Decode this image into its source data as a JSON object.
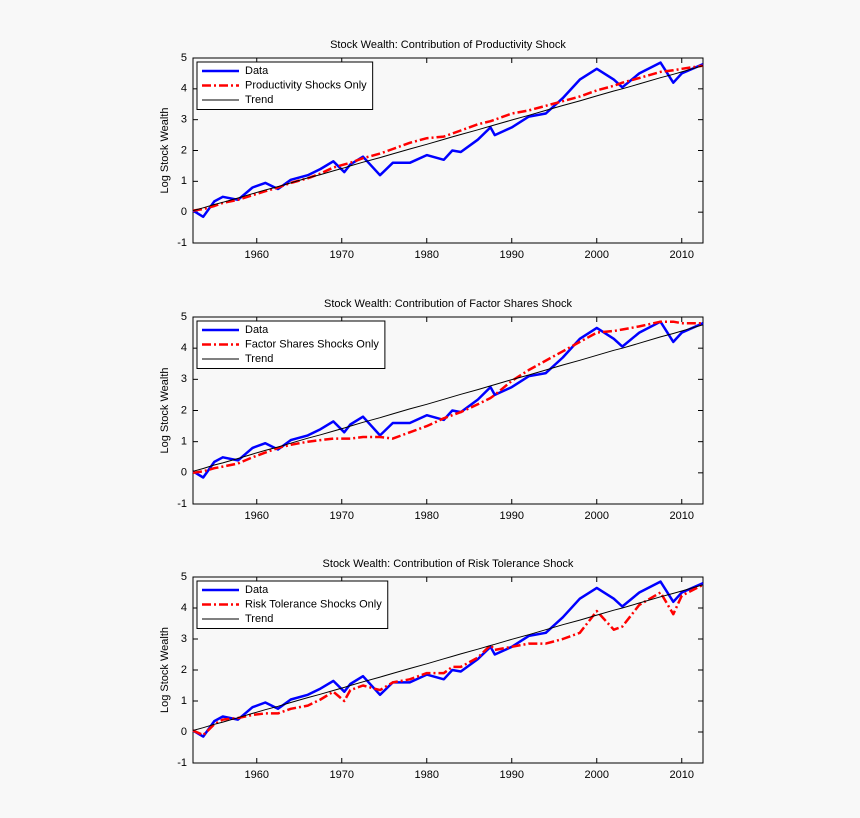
{
  "chart_data": [
    {
      "type": "line",
      "title": "Stock Wealth: Contribution of Productivity Shock",
      "ylabel": "Log Stock Wealth",
      "x": [
        1952.5,
        1953.7,
        1955,
        1956,
        1957.8,
        1959.5,
        1961,
        1962.5,
        1964,
        1966,
        1967.5,
        1969,
        1970.3,
        1971,
        1972.5,
        1974.5,
        1976,
        1978,
        1980,
        1982,
        1983,
        1984,
        1986,
        1987.5,
        1988,
        1990,
        1992,
        1994,
        1996,
        1998,
        2000,
        2002,
        2003,
        2005,
        2007.5,
        2009,
        2010,
        2012.5
      ],
      "series": [
        {
          "name": "Data",
          "color": "#0000ff",
          "linestyle": "solid",
          "linewidth": 2.5,
          "values": [
            0.05,
            -0.15,
            0.35,
            0.5,
            0.4,
            0.8,
            0.95,
            0.75,
            1.05,
            1.2,
            1.4,
            1.65,
            1.3,
            1.55,
            1.8,
            1.2,
            1.6,
            1.6,
            1.85,
            1.7,
            2.0,
            1.95,
            2.35,
            2.75,
            2.5,
            2.75,
            3.1,
            3.2,
            3.7,
            4.3,
            4.65,
            4.3,
            4.05,
            4.5,
            4.85,
            4.2,
            4.5,
            4.8
          ]
        },
        {
          "name": "Productivity Shocks Only",
          "color": "#ff0000",
          "linestyle": "dashdot",
          "linewidth": 2.5,
          "values": [
            0.05,
            0.1,
            0.2,
            0.3,
            0.4,
            0.55,
            0.68,
            0.8,
            0.95,
            1.1,
            1.25,
            1.45,
            1.55,
            1.6,
            1.75,
            1.9,
            2.05,
            2.25,
            2.4,
            2.45,
            2.55,
            2.65,
            2.85,
            2.95,
            3.0,
            3.2,
            3.3,
            3.45,
            3.6,
            3.75,
            3.95,
            4.1,
            4.2,
            4.35,
            4.55,
            4.6,
            4.65,
            4.75
          ]
        },
        {
          "name": "Trend",
          "color": "#000000",
          "linestyle": "solid",
          "linewidth": 1,
          "values": [
            0.05,
            0.14,
            0.25,
            0.32,
            0.46,
            0.6,
            0.72,
            0.83,
            0.95,
            1.11,
            1.22,
            1.34,
            1.44,
            1.5,
            1.62,
            1.77,
            1.89,
            2.05,
            2.2,
            2.36,
            2.44,
            2.52,
            2.67,
            2.79,
            2.83,
            2.99,
            3.14,
            3.3,
            3.46,
            3.61,
            3.77,
            3.93,
            4.0,
            4.16,
            4.36,
            4.47,
            4.55,
            4.75
          ]
        }
      ],
      "xlim": [
        1952.5,
        2012.5
      ],
      "xticks": [
        1960,
        1970,
        1980,
        1990,
        2000,
        2010
      ],
      "ylim": [
        -1,
        5
      ],
      "yticks": [
        -1,
        0,
        1,
        2,
        3,
        4,
        5
      ],
      "grid": false,
      "legend": "upper left"
    },
    {
      "type": "line",
      "title": "Stock Wealth: Contribution of Factor Shares Shock",
      "ylabel": "Log Stock Wealth",
      "x": [
        1952.5,
        1953.7,
        1955,
        1956,
        1957.8,
        1959.5,
        1961,
        1962.5,
        1964,
        1966,
        1967.5,
        1969,
        1970.3,
        1971,
        1972.5,
        1974.5,
        1976,
        1978,
        1980,
        1982,
        1983,
        1984,
        1986,
        1987.5,
        1988,
        1990,
        1992,
        1994,
        1996,
        1998,
        2000,
        2002,
        2003,
        2005,
        2007.5,
        2009,
        2010,
        2012.5
      ],
      "series": [
        {
          "name": "Data",
          "color": "#0000ff",
          "linestyle": "solid",
          "linewidth": 2.5,
          "values": [
            0.05,
            -0.15,
            0.35,
            0.5,
            0.4,
            0.8,
            0.95,
            0.75,
            1.05,
            1.2,
            1.4,
            1.65,
            1.3,
            1.55,
            1.8,
            1.2,
            1.6,
            1.6,
            1.85,
            1.7,
            2.0,
            1.95,
            2.35,
            2.75,
            2.5,
            2.75,
            3.1,
            3.2,
            3.7,
            4.3,
            4.65,
            4.3,
            4.05,
            4.5,
            4.85,
            4.2,
            4.5,
            4.8
          ]
        },
        {
          "name": "Factor Shares Shocks Only",
          "color": "#ff0000",
          "linestyle": "dashdot",
          "linewidth": 2.5,
          "values": [
            0.0,
            0.05,
            0.15,
            0.2,
            0.3,
            0.5,
            0.65,
            0.8,
            0.9,
            1.0,
            1.05,
            1.1,
            1.1,
            1.1,
            1.15,
            1.15,
            1.1,
            1.3,
            1.5,
            1.75,
            1.85,
            1.95,
            2.2,
            2.4,
            2.5,
            2.95,
            3.3,
            3.6,
            3.9,
            4.2,
            4.5,
            4.55,
            4.6,
            4.7,
            4.85,
            4.85,
            4.8,
            4.8
          ]
        },
        {
          "name": "Trend",
          "color": "#000000",
          "linestyle": "solid",
          "linewidth": 1,
          "values": [
            0.05,
            0.14,
            0.25,
            0.32,
            0.46,
            0.6,
            0.72,
            0.83,
            0.95,
            1.11,
            1.22,
            1.34,
            1.44,
            1.5,
            1.62,
            1.77,
            1.89,
            2.05,
            2.2,
            2.36,
            2.44,
            2.52,
            2.67,
            2.79,
            2.83,
            2.99,
            3.14,
            3.3,
            3.46,
            3.61,
            3.77,
            3.93,
            4.0,
            4.16,
            4.36,
            4.47,
            4.55,
            4.75
          ]
        }
      ],
      "xlim": [
        1952.5,
        2012.5
      ],
      "xticks": [
        1960,
        1970,
        1980,
        1990,
        2000,
        2010
      ],
      "ylim": [
        -1,
        5
      ],
      "yticks": [
        -1,
        0,
        1,
        2,
        3,
        4,
        5
      ],
      "grid": false,
      "legend": "upper left"
    },
    {
      "type": "line",
      "title": "Stock Wealth: Contribution of Risk Tolerance Shock",
      "ylabel": "Log Stock Wealth",
      "x": [
        1952.5,
        1953.7,
        1955,
        1956,
        1957.8,
        1959.5,
        1961,
        1962.5,
        1964,
        1966,
        1967.5,
        1969,
        1970.3,
        1971,
        1972.5,
        1974.5,
        1976,
        1978,
        1980,
        1982,
        1983,
        1984,
        1986,
        1987.5,
        1988,
        1990,
        1992,
        1994,
        1996,
        1998,
        2000,
        2002,
        2003,
        2005,
        2007.5,
        2009,
        2010,
        2012.5
      ],
      "series": [
        {
          "name": "Data",
          "color": "#0000ff",
          "linestyle": "solid",
          "linewidth": 2.5,
          "values": [
            0.05,
            -0.15,
            0.35,
            0.5,
            0.4,
            0.8,
            0.95,
            0.75,
            1.05,
            1.2,
            1.4,
            1.65,
            1.3,
            1.55,
            1.8,
            1.2,
            1.6,
            1.6,
            1.85,
            1.7,
            2.0,
            1.95,
            2.35,
            2.75,
            2.5,
            2.75,
            3.1,
            3.2,
            3.7,
            4.3,
            4.65,
            4.3,
            4.05,
            4.5,
            4.85,
            4.2,
            4.5,
            4.8
          ]
        },
        {
          "name": "Risk Tolerance Shocks Only",
          "color": "#ff0000",
          "linestyle": "dashdot",
          "linewidth": 2.5,
          "values": [
            0.05,
            -0.1,
            0.25,
            0.4,
            0.45,
            0.55,
            0.6,
            0.6,
            0.75,
            0.85,
            1.05,
            1.3,
            1.0,
            1.35,
            1.5,
            1.35,
            1.6,
            1.7,
            1.9,
            1.9,
            2.1,
            2.1,
            2.4,
            2.8,
            2.65,
            2.75,
            2.85,
            2.85,
            3.0,
            3.2,
            3.9,
            3.3,
            3.4,
            4.1,
            4.5,
            3.8,
            4.4,
            4.75
          ]
        },
        {
          "name": "Trend",
          "color": "#000000",
          "linestyle": "solid",
          "linewidth": 1,
          "values": [
            0.05,
            0.14,
            0.25,
            0.32,
            0.46,
            0.6,
            0.72,
            0.83,
            0.95,
            1.11,
            1.22,
            1.34,
            1.44,
            1.5,
            1.62,
            1.77,
            1.89,
            2.05,
            2.2,
            2.36,
            2.44,
            2.52,
            2.67,
            2.79,
            2.83,
            2.99,
            3.14,
            3.3,
            3.46,
            3.61,
            3.77,
            3.93,
            4.0,
            4.16,
            4.36,
            4.47,
            4.55,
            4.75
          ]
        }
      ],
      "xlim": [
        1952.5,
        2012.5
      ],
      "xticks": [
        1960,
        1970,
        1980,
        1990,
        2000,
        2010
      ],
      "ylim": [
        -1,
        5
      ],
      "yticks": [
        -1,
        0,
        1,
        2,
        3,
        4,
        5
      ],
      "grid": false,
      "legend": "upper left"
    }
  ]
}
